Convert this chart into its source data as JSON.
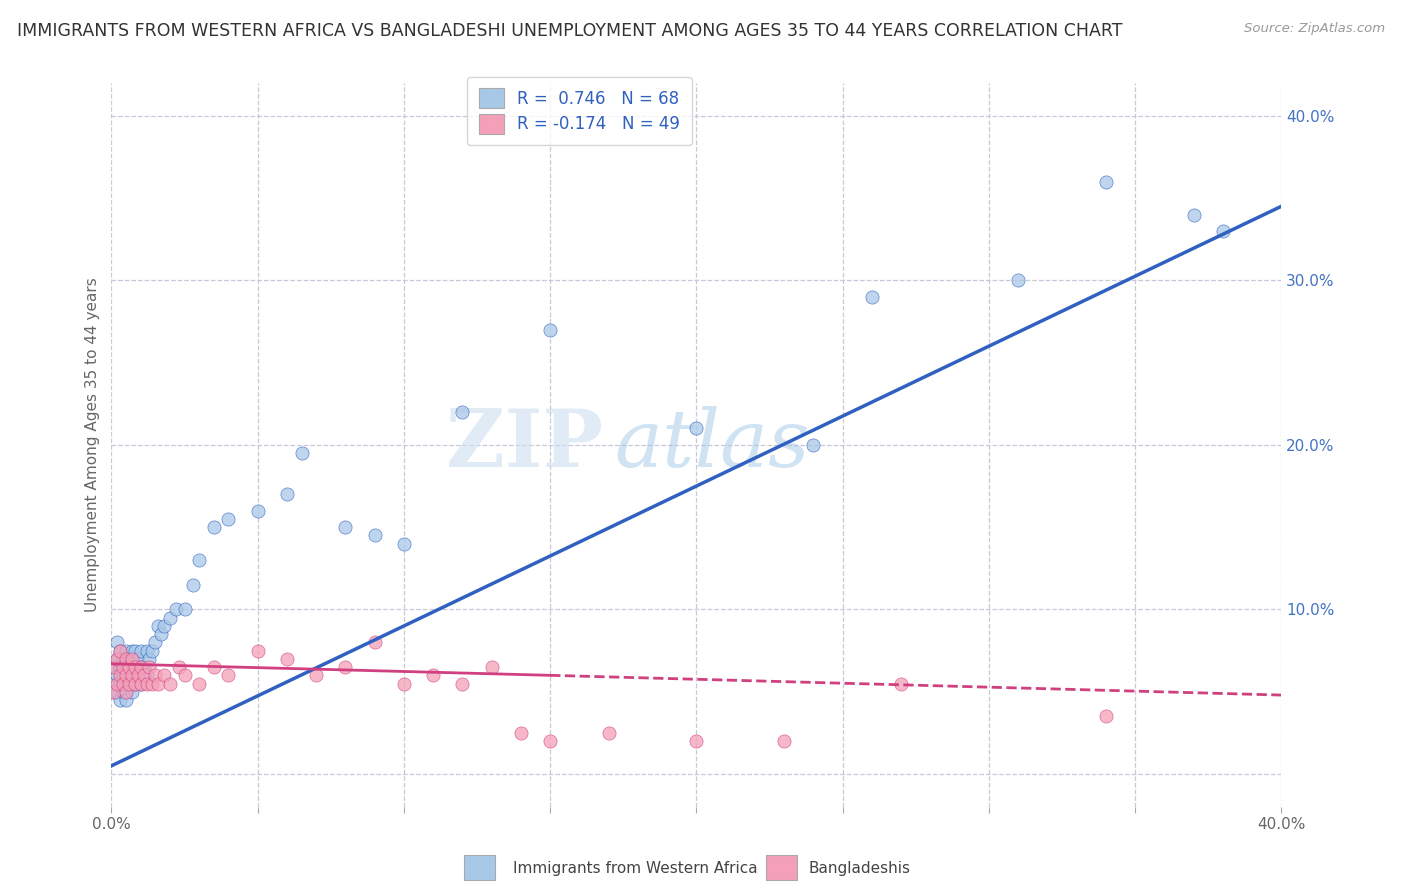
{
  "title": "IMMIGRANTS FROM WESTERN AFRICA VS BANGLADESHI UNEMPLOYMENT AMONG AGES 35 TO 44 YEARS CORRELATION CHART",
  "source": "Source: ZipAtlas.com",
  "ylabel": "Unemployment Among Ages 35 to 44 years",
  "xlim": [
    0.0,
    0.4
  ],
  "ylim": [
    -0.02,
    0.42
  ],
  "x_ticks": [
    0.0,
    0.05,
    0.1,
    0.15,
    0.2,
    0.25,
    0.3,
    0.35,
    0.4
  ],
  "y_ticks_right": [
    0.0,
    0.1,
    0.2,
    0.3,
    0.4
  ],
  "blue_R": 0.746,
  "blue_N": 68,
  "pink_R": -0.174,
  "pink_N": 49,
  "legend_label_blue": "Immigrants from Western Africa",
  "legend_label_pink": "Bangladeshis",
  "blue_color": "#a8c8e8",
  "pink_color": "#f4a0b8",
  "blue_line_color": "#3060c0",
  "pink_line_color": "#d04080",
  "watermark_zip": "ZIP",
  "watermark_atlas": "atlas",
  "background_color": "#ffffff",
  "grid_color": "#c8c8d8",
  "blue_scatter_x": [
    0.001,
    0.001,
    0.001,
    0.002,
    0.002,
    0.002,
    0.002,
    0.003,
    0.003,
    0.003,
    0.003,
    0.003,
    0.004,
    0.004,
    0.004,
    0.004,
    0.005,
    0.005,
    0.005,
    0.005,
    0.005,
    0.006,
    0.006,
    0.006,
    0.006,
    0.007,
    0.007,
    0.007,
    0.007,
    0.008,
    0.008,
    0.008,
    0.009,
    0.009,
    0.01,
    0.01,
    0.01,
    0.011,
    0.012,
    0.012,
    0.013,
    0.014,
    0.015,
    0.016,
    0.017,
    0.018,
    0.02,
    0.022,
    0.025,
    0.028,
    0.03,
    0.035,
    0.04,
    0.05,
    0.06,
    0.065,
    0.08,
    0.09,
    0.1,
    0.12,
    0.15,
    0.2,
    0.24,
    0.26,
    0.31,
    0.34,
    0.37,
    0.38
  ],
  "blue_scatter_y": [
    0.055,
    0.065,
    0.05,
    0.06,
    0.07,
    0.08,
    0.05,
    0.065,
    0.075,
    0.055,
    0.065,
    0.045,
    0.06,
    0.05,
    0.07,
    0.06,
    0.05,
    0.065,
    0.055,
    0.075,
    0.045,
    0.06,
    0.07,
    0.055,
    0.065,
    0.06,
    0.07,
    0.075,
    0.05,
    0.065,
    0.055,
    0.075,
    0.06,
    0.07,
    0.065,
    0.075,
    0.055,
    0.065,
    0.06,
    0.075,
    0.07,
    0.075,
    0.08,
    0.09,
    0.085,
    0.09,
    0.095,
    0.1,
    0.1,
    0.115,
    0.13,
    0.15,
    0.155,
    0.16,
    0.17,
    0.195,
    0.15,
    0.145,
    0.14,
    0.22,
    0.27,
    0.21,
    0.2,
    0.29,
    0.3,
    0.36,
    0.34,
    0.33
  ],
  "pink_scatter_x": [
    0.001,
    0.001,
    0.002,
    0.002,
    0.003,
    0.003,
    0.004,
    0.004,
    0.005,
    0.005,
    0.005,
    0.006,
    0.006,
    0.007,
    0.007,
    0.008,
    0.008,
    0.009,
    0.01,
    0.01,
    0.011,
    0.012,
    0.013,
    0.014,
    0.015,
    0.016,
    0.018,
    0.02,
    0.023,
    0.025,
    0.03,
    0.035,
    0.04,
    0.05,
    0.06,
    0.07,
    0.08,
    0.09,
    0.1,
    0.11,
    0.12,
    0.13,
    0.14,
    0.15,
    0.17,
    0.2,
    0.23,
    0.27,
    0.34
  ],
  "pink_scatter_y": [
    0.05,
    0.065,
    0.055,
    0.07,
    0.06,
    0.075,
    0.065,
    0.055,
    0.06,
    0.07,
    0.05,
    0.065,
    0.055,
    0.07,
    0.06,
    0.065,
    0.055,
    0.06,
    0.065,
    0.055,
    0.06,
    0.055,
    0.065,
    0.055,
    0.06,
    0.055,
    0.06,
    0.055,
    0.065,
    0.06,
    0.055,
    0.065,
    0.06,
    0.075,
    0.07,
    0.06,
    0.065,
    0.08,
    0.055,
    0.06,
    0.055,
    0.065,
    0.025,
    0.02,
    0.025,
    0.02,
    0.02,
    0.055,
    0.035
  ],
  "blue_line_y_start": 0.005,
  "blue_line_y_end": 0.345,
  "pink_line_y_start": 0.067,
  "pink_line_y_end": 0.048
}
